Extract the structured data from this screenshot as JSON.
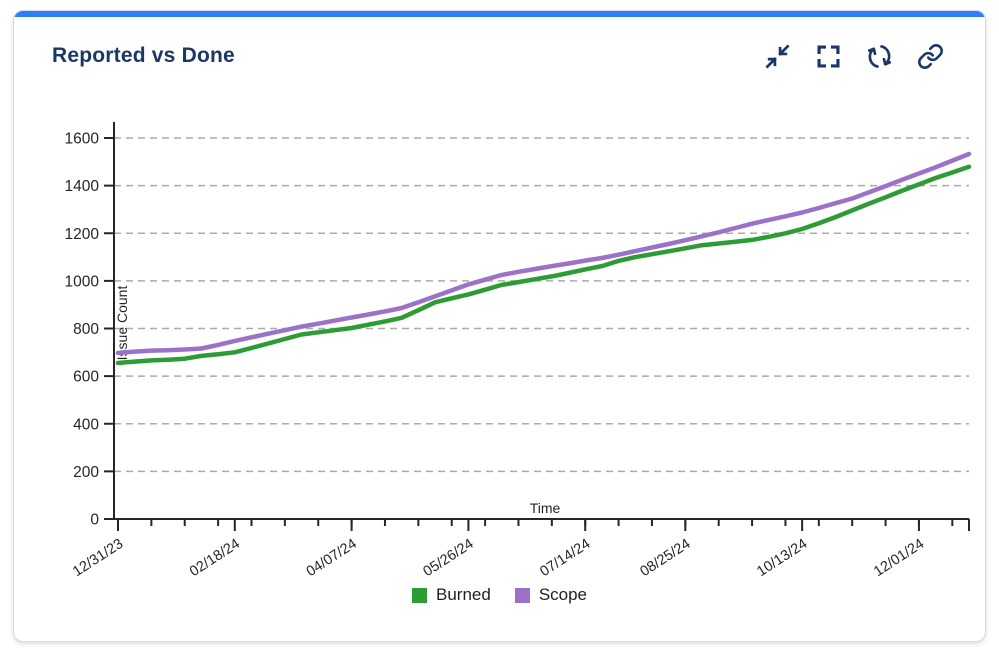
{
  "card": {
    "title": "Reported vs Done",
    "accent_color": "#2D7FF9",
    "toolbar_icons": [
      "collapse-icon",
      "fullscreen-icon",
      "refresh-icon",
      "link-icon"
    ]
  },
  "chart_data": {
    "type": "line",
    "title": "Reported vs Done",
    "xlabel": "Time",
    "ylabel": "Issue Count",
    "ylim": [
      0,
      1600
    ],
    "y_ticks": [
      0,
      200,
      400,
      600,
      800,
      1000,
      1200,
      1400,
      1600
    ],
    "grid": "horizontal-dashed",
    "legend_position": "bottom",
    "x_start_date": "12/31/23",
    "x_step_days": 7,
    "x_total_days": 357,
    "x_tick_days": [
      0,
      49,
      98,
      147,
      196,
      238,
      287,
      336
    ],
    "x_tick_labels": [
      "12/31/23",
      "02/18/24",
      "04/07/24",
      "05/26/24",
      "07/14/24",
      "08/25/24",
      "10/13/24",
      "12/01/24"
    ],
    "series": [
      {
        "name": "Burned",
        "color": "#2E9C35",
        "values": [
          655,
          661,
          666,
          669,
          673,
          685,
          692,
          700,
          718,
          737,
          756,
          775,
          784,
          793,
          802,
          816,
          830,
          845,
          877,
          910,
          927,
          943,
          963,
          983,
          995,
          1007,
          1019,
          1033,
          1048,
          1062,
          1084,
          1100,
          1112,
          1124,
          1137,
          1150,
          1157,
          1164,
          1172,
          1185,
          1200,
          1218,
          1242,
          1268,
          1296,
          1324,
          1351,
          1379,
          1405,
          1432,
          1455,
          1479
        ]
      },
      {
        "name": "Scope",
        "color": "#9C72C9",
        "values": [
          697,
          703,
          707,
          709,
          712,
          716,
          731,
          748,
          763,
          778,
          793,
          808,
          820,
          833,
          846,
          859,
          872,
          886,
          910,
          935,
          960,
          985,
          1005,
          1025,
          1038,
          1050,
          1062,
          1073,
          1085,
          1096,
          1110,
          1125,
          1140,
          1155,
          1171,
          1187,
          1204,
          1222,
          1240,
          1256,
          1271,
          1287,
          1306,
          1326,
          1346,
          1372,
          1398,
          1425,
          1451,
          1477,
          1505,
          1533
        ]
      }
    ]
  }
}
